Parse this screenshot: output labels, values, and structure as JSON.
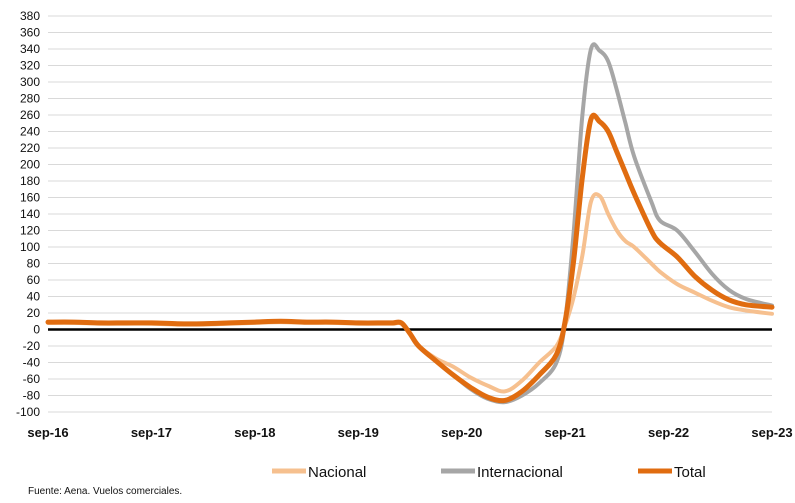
{
  "chart_data": {
    "type": "line",
    "title": "",
    "xlabel": "",
    "ylabel": "",
    "ylim": [
      -100,
      380
    ],
    "yticks": [
      -100,
      -80,
      -60,
      -40,
      -20,
      0,
      20,
      40,
      60,
      80,
      100,
      120,
      140,
      160,
      180,
      200,
      220,
      240,
      260,
      280,
      300,
      320,
      340,
      360,
      380
    ],
    "x_tick_labels": [
      "sep-16",
      "sep-17",
      "sep-18",
      "sep-19",
      "sep-20",
      "sep-21",
      "sep-22",
      "sep-23"
    ],
    "grid": true,
    "legend_position": "bottom",
    "zero_line": true,
    "series": [
      {
        "name": "Nacional",
        "color": "#f6c08f",
        "x": [
          "2016-09",
          "2016-12",
          "2017-03",
          "2017-06",
          "2017-09",
          "2017-12",
          "2018-03",
          "2018-06",
          "2018-09",
          "2018-12",
          "2019-03",
          "2019-06",
          "2019-09",
          "2019-12",
          "2020-01",
          "2020-02",
          "2020-03",
          "2020-04",
          "2020-06",
          "2020-08",
          "2020-10",
          "2020-12",
          "2021-02",
          "2021-04",
          "2021-06",
          "2021-08",
          "2021-09",
          "2021-10",
          "2021-11",
          "2021-12",
          "2022-01",
          "2022-02",
          "2022-03",
          "2022-04",
          "2022-05",
          "2022-07",
          "2022-08",
          "2022-10",
          "2022-12",
          "2023-02",
          "2023-04",
          "2023-06",
          "2023-09"
        ],
        "values": [
          8,
          8,
          7,
          7,
          7,
          6,
          6,
          7,
          8,
          9,
          8,
          8,
          7,
          7,
          7,
          7,
          -5,
          -20,
          -35,
          -45,
          -58,
          -68,
          -75,
          -62,
          -40,
          -20,
          5,
          40,
          90,
          155,
          162,
          140,
          120,
          107,
          100,
          80,
          70,
          55,
          45,
          35,
          27,
          23,
          19
        ]
      },
      {
        "name": "Internacional",
        "color": "#a6a6a6",
        "x": [
          "2016-09",
          "2016-12",
          "2017-03",
          "2017-06",
          "2017-09",
          "2017-12",
          "2018-03",
          "2018-06",
          "2018-09",
          "2018-12",
          "2019-03",
          "2019-06",
          "2019-09",
          "2019-12",
          "2020-01",
          "2020-02",
          "2020-03",
          "2020-04",
          "2020-06",
          "2020-08",
          "2020-10",
          "2020-12",
          "2021-02",
          "2021-04",
          "2021-06",
          "2021-08",
          "2021-09",
          "2021-10",
          "2021-11",
          "2021-12",
          "2022-01",
          "2022-02",
          "2022-03",
          "2022-04",
          "2022-05",
          "2022-07",
          "2022-08",
          "2022-10",
          "2022-12",
          "2023-02",
          "2023-04",
          "2023-06",
          "2023-09"
        ],
        "values": [
          9,
          9,
          8,
          8,
          8,
          7,
          7,
          8,
          9,
          10,
          9,
          9,
          8,
          8,
          8,
          8,
          -5,
          -20,
          -38,
          -55,
          -72,
          -84,
          -88,
          -80,
          -65,
          -40,
          10,
          120,
          260,
          340,
          338,
          325,
          290,
          250,
          210,
          155,
          132,
          120,
          95,
          68,
          48,
          37,
          29
        ]
      },
      {
        "name": "Total",
        "color": "#e06c10",
        "x": [
          "2016-09",
          "2016-12",
          "2017-03",
          "2017-06",
          "2017-09",
          "2017-12",
          "2018-03",
          "2018-06",
          "2018-09",
          "2018-12",
          "2019-03",
          "2019-06",
          "2019-09",
          "2019-12",
          "2020-01",
          "2020-02",
          "2020-03",
          "2020-04",
          "2020-06",
          "2020-08",
          "2020-10",
          "2020-12",
          "2021-02",
          "2021-04",
          "2021-06",
          "2021-08",
          "2021-09",
          "2021-10",
          "2021-11",
          "2021-12",
          "2022-01",
          "2022-02",
          "2022-03",
          "2022-04",
          "2022-05",
          "2022-07",
          "2022-08",
          "2022-10",
          "2022-12",
          "2023-02",
          "2023-04",
          "2023-06",
          "2023-09"
        ],
        "values": [
          9,
          9,
          8,
          8,
          8,
          7,
          7,
          8,
          9,
          10,
          9,
          9,
          8,
          8,
          8,
          8,
          -5,
          -20,
          -38,
          -55,
          -70,
          -82,
          -86,
          -75,
          -55,
          -30,
          10,
          85,
          185,
          255,
          252,
          240,
          215,
          190,
          165,
          120,
          105,
          88,
          65,
          48,
          36,
          30,
          27
        ]
      }
    ]
  },
  "source_note": "Fuente: Aena. Vuelos comerciales."
}
